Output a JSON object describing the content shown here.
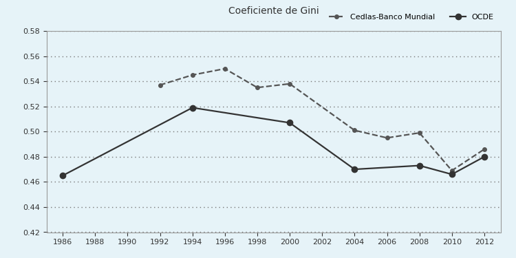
{
  "chart_data": {
    "type": "line",
    "title": "Coeficiente de Gini",
    "xlim": [
      1985,
      2013
    ],
    "xticks": [
      1986,
      1988,
      1990,
      1992,
      1994,
      1996,
      1998,
      2000,
      2002,
      2004,
      2006,
      2008,
      2010,
      2012
    ],
    "ylim": [
      0.42,
      0.58
    ],
    "yticks": [
      0.42,
      0.44,
      0.46,
      0.48,
      {
        "value": 0.5,
        "label": "0.50"
      },
      0.52,
      0.54,
      0.56,
      0.58
    ],
    "grid": true,
    "legend": "upper right",
    "series": [
      {
        "name": "Cedlas-Banco Mundial",
        "color": "#555555",
        "line_style": "dashed",
        "marker": "dot",
        "x": [
          1992,
          1994,
          1996,
          1998,
          2000,
          2004,
          2006,
          2008,
          2010,
          2012
        ],
        "values": [
          0.537,
          0.545,
          0.55,
          0.535,
          0.538,
          0.501,
          0.495,
          0.499,
          0.469,
          0.486
        ]
      },
      {
        "name": "OCDE",
        "color": "#333333",
        "line_style": "solid",
        "marker": "circle",
        "x": [
          1986,
          1994,
          2000,
          2004,
          2008,
          2010,
          2012
        ],
        "values": [
          0.465,
          0.519,
          0.507,
          0.47,
          0.473,
          0.466,
          0.48
        ]
      }
    ]
  }
}
